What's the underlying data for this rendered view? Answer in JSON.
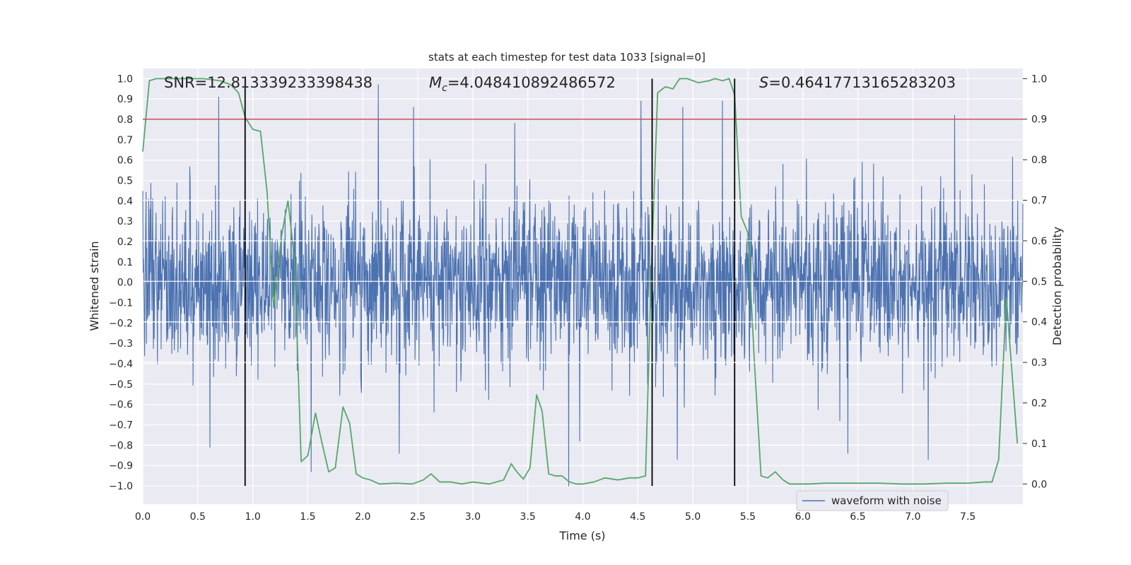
{
  "chart_data": {
    "type": "line",
    "title": "stats at each timestep for test data 1033 [signal=0]",
    "xlabel": "Time (s)",
    "ylabel_left": "Whitened strain",
    "ylabel_right": "Detection probability",
    "xlim": [
      0.0,
      8.0
    ],
    "ylim_left": [
      -1.09,
      1.05
    ],
    "ylim_right": [
      -0.05,
      1.025
    ],
    "x_ticks": [
      0.0,
      0.5,
      1.0,
      1.5,
      2.0,
      2.5,
      3.0,
      3.5,
      4.0,
      4.5,
      5.0,
      5.5,
      6.0,
      6.5,
      7.0,
      7.5
    ],
    "x_tick_labels": [
      "0.0",
      "0.5",
      "1.0",
      "1.5",
      "2.0",
      "2.5",
      "3.0",
      "3.5",
      "4.0",
      "4.5",
      "5.0",
      "5.5",
      "6.0",
      "6.5",
      "7.0",
      "7.5"
    ],
    "y_left_ticks": [
      1.0,
      0.9,
      0.8,
      0.7,
      0.6,
      0.5,
      0.4,
      0.3,
      0.2,
      0.1,
      0.0,
      -0.1,
      -0.2,
      -0.3,
      -0.4,
      -0.5,
      -0.6,
      -0.7,
      -0.8,
      -0.9,
      -1.0
    ],
    "y_left_tick_labels": [
      "1.0",
      "0.9",
      "0.8",
      "0.7",
      "0.6",
      "0.5",
      "0.4",
      "0.3",
      "0.2",
      "0.1",
      "0.0",
      "−0.1",
      "−0.2",
      "−0.3",
      "−0.4",
      "−0.5",
      "−0.6",
      "−0.7",
      "−0.8",
      "−0.9",
      "−1.0"
    ],
    "y_right_ticks": [
      1.0,
      0.9,
      0.8,
      0.7,
      0.6,
      0.5,
      0.4,
      0.3,
      0.2,
      0.1,
      0.0
    ],
    "y_right_tick_labels": [
      "1.0",
      "0.9",
      "0.8",
      "0.7",
      "0.6",
      "0.5",
      "0.4",
      "0.3",
      "0.2",
      "0.1",
      "0.0"
    ],
    "grid": true,
    "legend": {
      "entries": [
        "waveform with noise"
      ],
      "placement": "lower-right"
    },
    "annotations": {
      "snr": "SNR=12.813339233398438",
      "mc_symbol": "M",
      "mc_subscript": "c",
      "mc_value": "=4.048410892486572",
      "s_symbol": "S",
      "s_value": "=0.46417713165283203"
    },
    "threshold": {
      "axis": "right",
      "value": 0.9,
      "color": "#c44e52"
    },
    "vertical_markers": {
      "x": [
        0.93,
        4.63,
        5.38
      ],
      "y_range": [
        -1.0,
        1.0
      ],
      "color": "#000000"
    },
    "series": [
      {
        "name": "waveform with noise",
        "axis": "left",
        "color": "#4c72b0",
        "note": "dense noisy strain, ~2400 samples; envelope approx ±0.4 with spikes to ±0.9",
        "x_range": [
          0.0,
          8.0
        ],
        "samples": 2400,
        "spikes": [
          {
            "x": 0.69,
            "y": 0.91
          },
          {
            "x": 0.93,
            "y": 0.78
          },
          {
            "x": 2.14,
            "y": 0.97
          },
          {
            "x": 2.46,
            "y": 0.86
          },
          {
            "x": 3.38,
            "y": 0.78
          },
          {
            "x": 4.53,
            "y": 0.89
          },
          {
            "x": 4.91,
            "y": 0.86
          },
          {
            "x": 5.27,
            "y": 0.89
          },
          {
            "x": 7.38,
            "y": 0.82
          },
          {
            "x": 0.61,
            "y": -0.81
          },
          {
            "x": 1.53,
            "y": -0.93
          },
          {
            "x": 2.33,
            "y": -0.84
          },
          {
            "x": 3.87,
            "y": -1.0
          },
          {
            "x": 3.97,
            "y": -0.78
          },
          {
            "x": 4.86,
            "y": -0.87
          },
          {
            "x": 7.14,
            "y": -0.87
          },
          {
            "x": 6.41,
            "y": -0.84
          }
        ]
      },
      {
        "name": "detection probability",
        "axis": "right",
        "color": "#55a868",
        "x": [
          0.0,
          0.06,
          0.12,
          0.25,
          0.4,
          0.55,
          0.7,
          0.8,
          0.87,
          0.93,
          1.0,
          1.07,
          1.13,
          1.19,
          1.26,
          1.32,
          1.38,
          1.44,
          1.5,
          1.57,
          1.63,
          1.69,
          1.75,
          1.82,
          1.88,
          1.94,
          2.0,
          2.07,
          2.15,
          2.3,
          2.45,
          2.55,
          2.62,
          2.7,
          2.8,
          2.9,
          3.0,
          3.15,
          3.28,
          3.35,
          3.4,
          3.46,
          3.52,
          3.58,
          3.63,
          3.69,
          3.75,
          3.81,
          3.88,
          3.94,
          4.0,
          4.1,
          4.2,
          4.32,
          4.42,
          4.5,
          4.57,
          4.62,
          4.68,
          4.75,
          4.82,
          4.88,
          4.95,
          5.05,
          5.15,
          5.2,
          5.27,
          5.33,
          5.38,
          5.44,
          5.5,
          5.56,
          5.62,
          5.68,
          5.75,
          5.82,
          5.88,
          5.95,
          6.05,
          6.2,
          6.45,
          6.7,
          6.9,
          7.1,
          7.3,
          7.5,
          7.65,
          7.72,
          7.78,
          7.85,
          7.95
        ],
        "y": [
          0.82,
          0.995,
          1.0,
          1.0,
          1.0,
          1.0,
          0.995,
          0.985,
          0.965,
          0.905,
          0.875,
          0.87,
          0.72,
          0.435,
          0.61,
          0.7,
          0.55,
          0.055,
          0.07,
          0.175,
          0.1,
          0.03,
          0.04,
          0.19,
          0.15,
          0.025,
          0.015,
          0.01,
          0.0,
          0.002,
          0.0,
          0.01,
          0.025,
          0.005,
          0.005,
          0.0,
          0.005,
          0.0,
          0.01,
          0.05,
          0.03,
          0.012,
          0.04,
          0.22,
          0.18,
          0.025,
          0.02,
          0.02,
          0.005,
          0.0,
          0.0,
          0.005,
          0.015,
          0.01,
          0.015,
          0.015,
          0.02,
          0.5,
          0.965,
          0.98,
          0.975,
          1.0,
          1.0,
          0.99,
          0.995,
          1.0,
          0.995,
          1.0,
          0.96,
          0.66,
          0.62,
          0.3,
          0.02,
          0.015,
          0.03,
          0.01,
          0.0,
          0.0,
          0.0,
          0.002,
          0.002,
          0.002,
          0.0,
          0.0,
          0.002,
          0.002,
          0.005,
          0.005,
          0.06,
          0.46,
          0.1
        ]
      }
    ]
  }
}
